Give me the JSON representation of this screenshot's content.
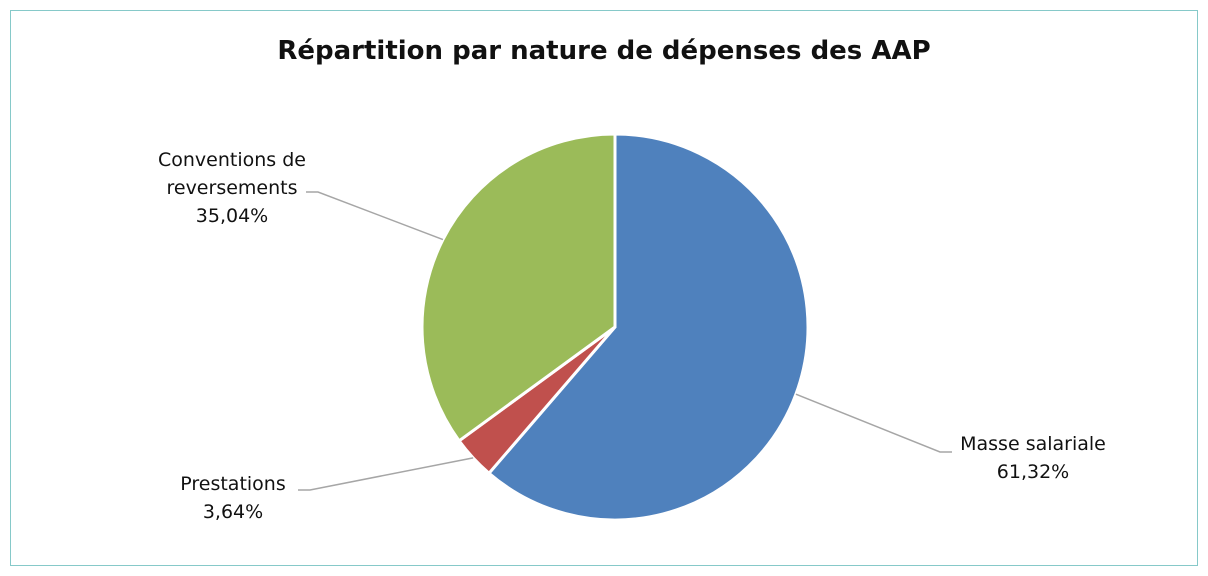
{
  "chart_data": {
    "type": "pie",
    "title": "Répartition par nature de dépenses des AAP",
    "categories": [
      "Masse salariale",
      "Prestations",
      "Conventions de reversements"
    ],
    "values": [
      61.32,
      3.64,
      35.04
    ],
    "value_labels": [
      "61,32%",
      "3,64%",
      "35,04%"
    ],
    "colors": [
      "#4f81bd",
      "#c0504d",
      "#9bbb59"
    ]
  }
}
